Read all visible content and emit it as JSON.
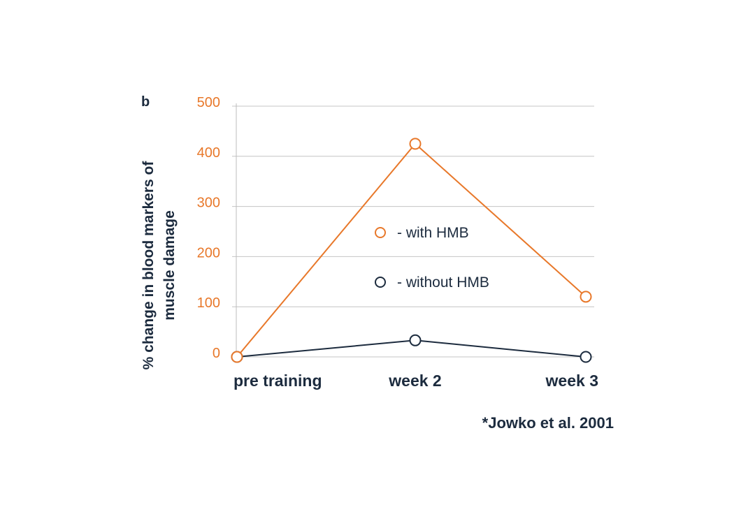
{
  "chart_data": {
    "type": "line",
    "panel_label": "b",
    "categories": [
      "pre training",
      "week 2",
      "week 3"
    ],
    "ylabel": [
      "% change in blood markers of",
      "muscle damage"
    ],
    "xlabel": "",
    "ylim": [
      0,
      500
    ],
    "yticks": [
      0,
      100,
      200,
      300,
      400,
      500
    ],
    "grid": true,
    "series": [
      {
        "name": "- with HMB",
        "color": "#e8782a",
        "marker": "open-circle",
        "values": [
          0,
          425,
          120
        ]
      },
      {
        "name": "- without HMB",
        "color": "#1c2b3e",
        "marker": "open-circle",
        "values": [
          0,
          33,
          0
        ]
      }
    ],
    "legend_position": "center",
    "source": "*Jowko et al. 2001"
  }
}
